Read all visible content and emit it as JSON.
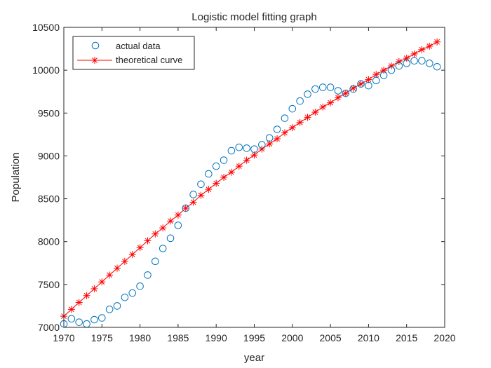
{
  "chart_data": {
    "type": "line",
    "title": "Logistic model fitting graph",
    "xlabel": "year",
    "ylabel": "Population",
    "xlim": [
      1970,
      2020
    ],
    "ylim": [
      7000,
      10500
    ],
    "xticks": [
      "1970",
      "1975",
      "1980",
      "1985",
      "1990",
      "1995",
      "2000",
      "2005",
      "2010",
      "2015",
      "2020"
    ],
    "yticks": [
      "7000",
      "7500",
      "8000",
      "8500",
      "9000",
      "9500",
      "10000",
      "10500"
    ],
    "grid": false,
    "legend_position": "top-left",
    "x": [
      1970,
      1971,
      1972,
      1973,
      1974,
      1975,
      1976,
      1977,
      1978,
      1979,
      1980,
      1981,
      1982,
      1983,
      1984,
      1985,
      1986,
      1987,
      1988,
      1989,
      1990,
      1991,
      1992,
      1993,
      1994,
      1995,
      1996,
      1997,
      1998,
      1999,
      2000,
      2001,
      2002,
      2003,
      2004,
      2005,
      2006,
      2007,
      2008,
      2009,
      2010,
      2011,
      2012,
      2013,
      2014,
      2015,
      2016,
      2017,
      2018,
      2019
    ],
    "series": [
      {
        "name": "actual data",
        "marker": "circle",
        "color": "#0072BD",
        "values": [
          7040,
          7100,
          7060,
          7040,
          7090,
          7110,
          7210,
          7250,
          7350,
          7400,
          7480,
          7610,
          7770,
          7920,
          8040,
          8190,
          8390,
          8550,
          8670,
          8790,
          8880,
          8950,
          9060,
          9100,
          9090,
          9080,
          9130,
          9210,
          9310,
          9440,
          9550,
          9640,
          9720,
          9780,
          9800,
          9800,
          9760,
          9730,
          9780,
          9840,
          9820,
          9880,
          9940,
          10000,
          10050,
          10080,
          10110,
          10110,
          10080,
          10040
        ]
      },
      {
        "name": "theoretical curve",
        "marker": "asterisk-line",
        "color": "#FF0000",
        "values": [
          7130,
          7210,
          7290,
          7370,
          7450,
          7530,
          7610,
          7690,
          7770,
          7850,
          7930,
          8010,
          8090,
          8160,
          8240,
          8310,
          8390,
          8460,
          8540,
          8610,
          8680,
          8750,
          8810,
          8880,
          8950,
          9010,
          9080,
          9140,
          9200,
          9270,
          9330,
          9390,
          9450,
          9510,
          9570,
          9620,
          9680,
          9730,
          9790,
          9840,
          9890,
          9950,
          10000,
          10050,
          10100,
          10140,
          10190,
          10240,
          10280,
          10330
        ]
      }
    ]
  }
}
